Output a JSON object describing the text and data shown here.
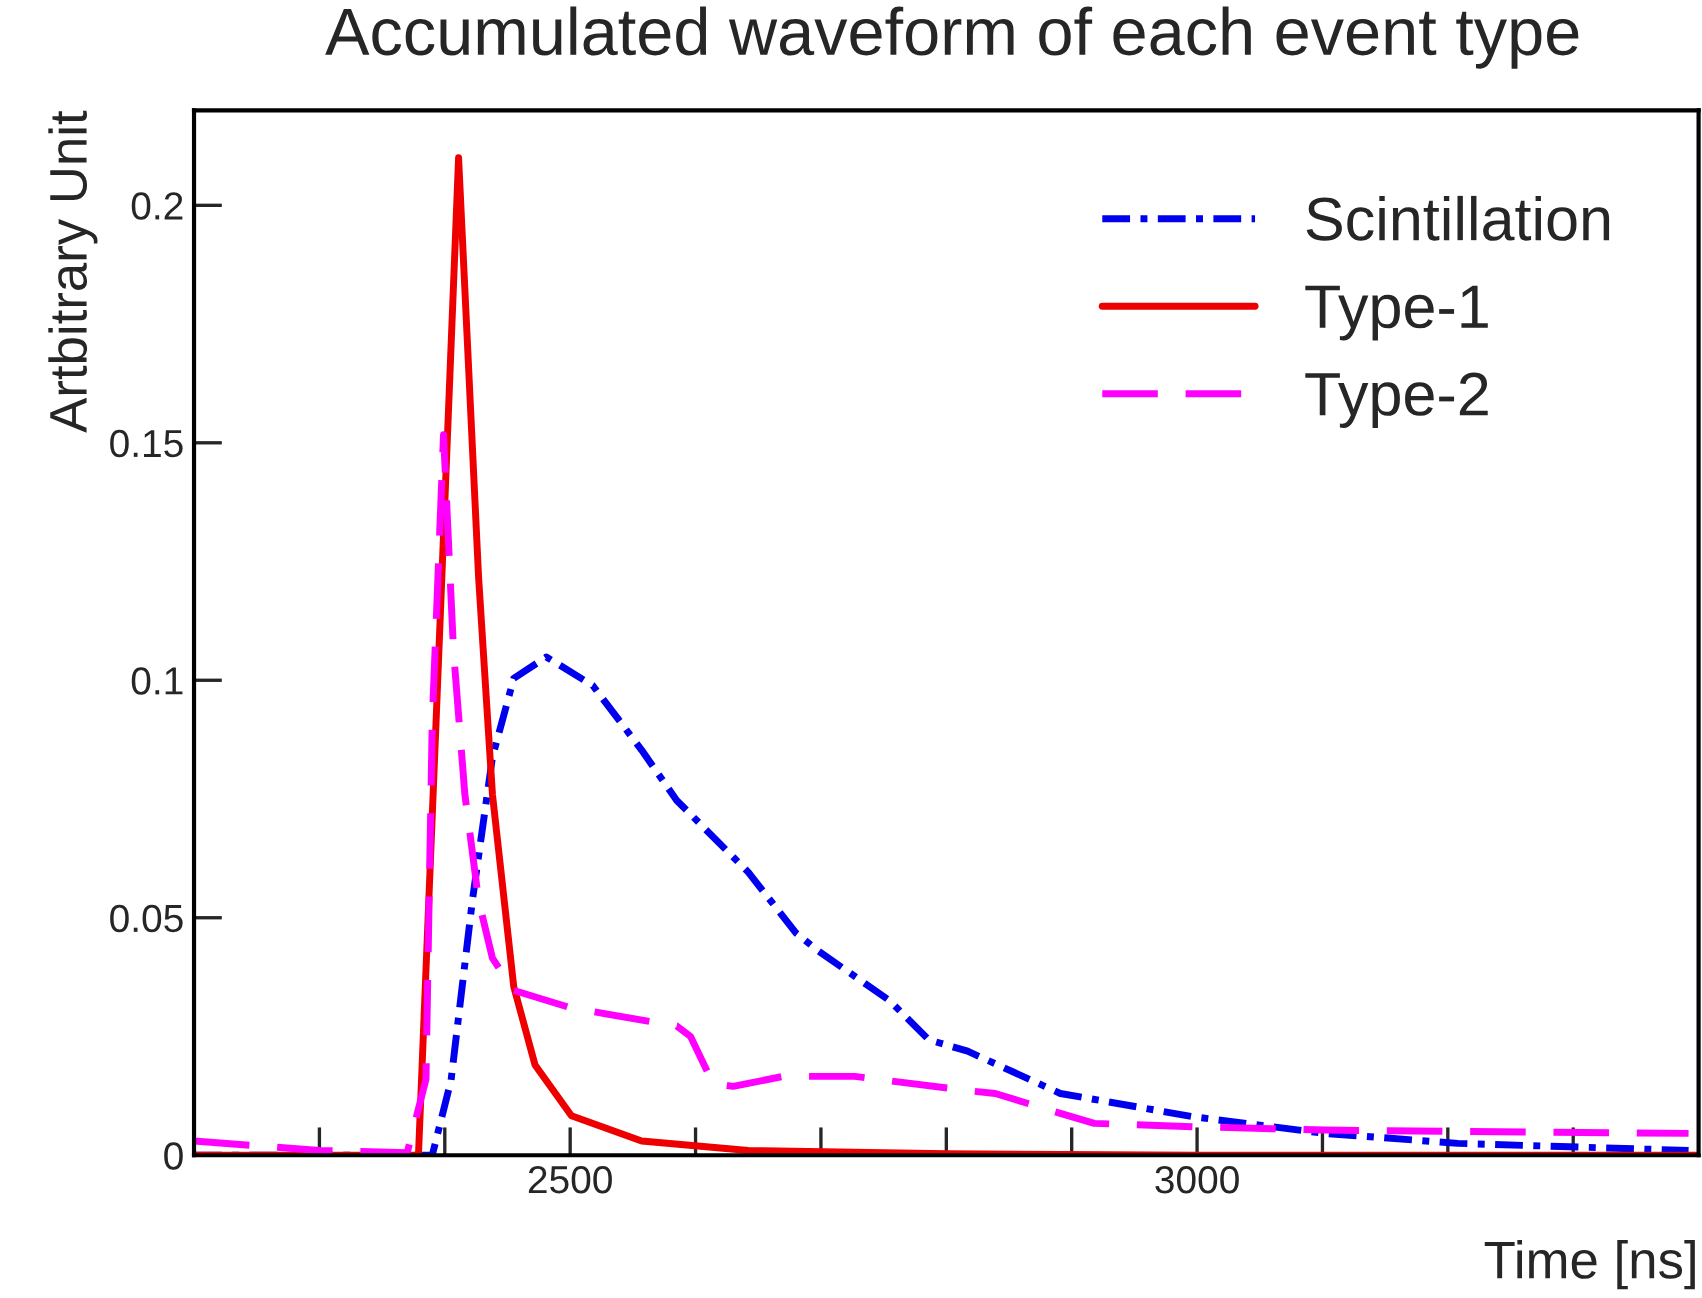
{
  "chart_data": {
    "type": "line",
    "title": "Accumulated waveform of each event type",
    "xlabel": "Time [ns]",
    "ylabel": "Artbitrary Unit",
    "xlim": [
      2200,
      3400
    ],
    "ylim": [
      0,
      0.22
    ],
    "xticks": [
      {
        "value": 2300,
        "label": null
      },
      {
        "value": 2400,
        "label": null
      },
      2500,
      {
        "value": 2600,
        "label": null
      },
      {
        "value": 2700,
        "label": null
      },
      {
        "value": 2800,
        "label": null
      },
      {
        "value": 2900,
        "label": null
      },
      3000,
      {
        "value": 3100,
        "label": null
      },
      {
        "value": 3200,
        "label": null
      },
      {
        "value": 3300,
        "label": null
      }
    ],
    "yticks": [
      0,
      0.05,
      0.1,
      0.15,
      0.2
    ],
    "legend": "top right",
    "grid": false,
    "series": [
      {
        "name": "Scintillation",
        "color": "#0000ee",
        "line_style": "dashdot",
        "x": [
          2200,
          2390,
          2405,
          2422,
          2438,
          2455,
          2481,
          2518,
          2557,
          2585,
          2642,
          2680,
          2698,
          2755,
          2786,
          2817,
          2891,
          2997,
          3102,
          3208,
          3392
        ],
        "values": [
          0,
          0,
          0.0158,
          0.0536,
          0.0838,
          0.1004,
          0.1049,
          0.0989,
          0.0853,
          0.0747,
          0.0596,
          0.0468,
          0.043,
          0.0325,
          0.0243,
          0.0219,
          0.013,
          0.0081,
          0.0046,
          0.0025,
          0.001
        ]
      },
      {
        "name": "Type-1",
        "color": "#ee0000",
        "line_style": "solid",
        "x": [
          2200,
          2379,
          2393,
          2411,
          2427,
          2438,
          2455,
          2472,
          2501,
          2557,
          2642,
          2800,
          3000,
          3400
        ],
        "values": [
          0,
          0,
          0.091,
          0.21,
          0.1215,
          0.076,
          0.0355,
          0.019,
          0.0083,
          0.003,
          0.001,
          0.0003,
          0,
          0
        ]
      },
      {
        "name": "Type-2",
        "color": "#ff00ff",
        "line_style": "dashed",
        "x": [
          2200,
          2300,
          2370,
          2385,
          2390,
          2399,
          2407,
          2416,
          2427,
          2438,
          2455,
          2501,
          2585,
          2596,
          2614,
          2630,
          2670,
          2727,
          2817,
          2839,
          2891,
          2918,
          2997,
          3102,
          3208,
          3392
        ],
        "values": [
          0.003,
          0.001,
          0.0005,
          0.016,
          0.0913,
          0.1517,
          0.106,
          0.076,
          0.0536,
          0.0415,
          0.0347,
          0.031,
          0.0272,
          0.025,
          0.0151,
          0.0145,
          0.0166,
          0.0166,
          0.0136,
          0.013,
          0.0088,
          0.0067,
          0.006,
          0.0053,
          0.005,
          0.0046
        ]
      }
    ]
  }
}
